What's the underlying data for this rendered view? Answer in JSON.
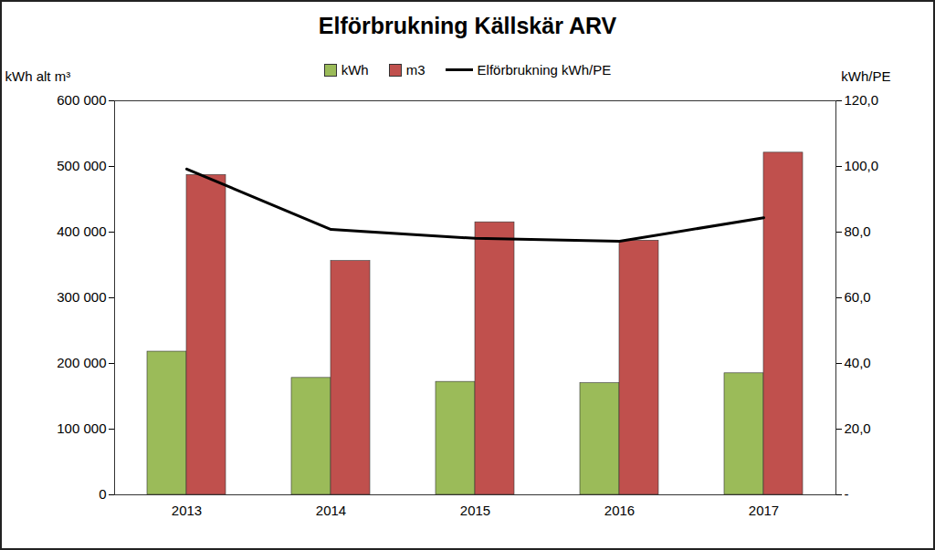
{
  "chart_data": {
    "type": "bar",
    "title": "Elförbrukning Källskär ARV",
    "categories": [
      "2013",
      "2014",
      "2015",
      "2016",
      "2017"
    ],
    "ylabel": "kWh alt m³",
    "y2label": "kWh/PE",
    "ylim": [
      0,
      600000
    ],
    "yticks": [
      0,
      {
        "value": 100000,
        "label": "100 000"
      },
      {
        "value": 200000,
        "label": "200 000"
      },
      {
        "value": 300000,
        "label": "300 000"
      },
      {
        "value": 400000,
        "label": "400 000"
      },
      {
        "value": 500000,
        "label": "500 000"
      },
      {
        "value": 600000,
        "label": "600 000"
      }
    ],
    "y2lim": [
      0,
      120
    ],
    "y2ticks": [
      {
        "value": 0,
        "label": "-"
      },
      {
        "value": 20,
        "label": "20,0"
      },
      {
        "value": 40,
        "label": "40,0"
      },
      {
        "value": 60,
        "label": "60,0"
      },
      {
        "value": 80,
        "label": "80,0"
      },
      {
        "value": 100,
        "label": "100,0"
      },
      {
        "value": 120,
        "label": "120,0"
      }
    ],
    "legend": "top",
    "series": [
      {
        "name": "kWh",
        "color": "#9bbb59",
        "values": [
          218000,
          178000,
          172000,
          170000,
          185000
        ]
      },
      {
        "name": "m3",
        "color": "#c0504d",
        "values": [
          487000,
          356000,
          415000,
          387000,
          521000
        ]
      },
      {
        "name": "Elförbrukning kWh/PE",
        "type": "line",
        "axis": "y2",
        "color": "#000000",
        "values": [
          99.2,
          80.8,
          78.1,
          77.2,
          84.4
        ]
      }
    ]
  }
}
